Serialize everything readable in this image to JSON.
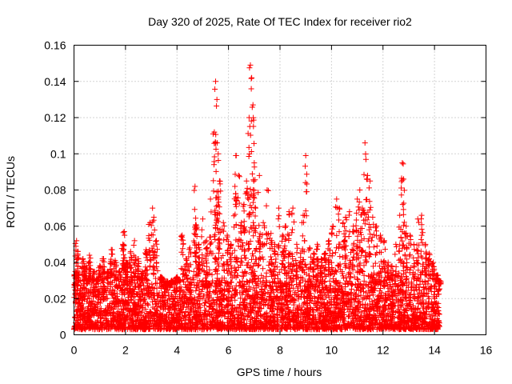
{
  "chart_data": {
    "type": "scatter",
    "title": "Day 320 of 2025, Rate Of TEC Index for receiver rio2",
    "xlabel": "GPS time / hours",
    "ylabel": "ROTI / TECUs",
    "xlim": [
      0,
      16
    ],
    "ylim": [
      0,
      0.16
    ],
    "xticks": [
      0,
      2,
      4,
      6,
      8,
      10,
      12,
      14,
      16
    ],
    "xtick_labels": [
      "0",
      "2",
      "4",
      "6",
      "8",
      "10",
      "12",
      "14",
      "16"
    ],
    "yticks": [
      0,
      0.02,
      0.04,
      0.06,
      0.08,
      0.1,
      0.12,
      0.14,
      0.16
    ],
    "ytick_labels": [
      "0",
      "0.02",
      "0.04",
      "0.06",
      "0.08",
      "0.1",
      "0.12",
      "0.14",
      "0.16"
    ],
    "grid": true,
    "marker": "+",
    "color": "#ff0000",
    "data_x_range": [
      0.0,
      14.2
    ],
    "baseline_band": [
      0.003,
      0.03
    ],
    "series": [
      {
        "name": "ROTI",
        "x": [
          0.05,
          0.1,
          0.15,
          0.2,
          0.35,
          0.45,
          0.6,
          0.75,
          0.9,
          1.0,
          1.15,
          1.3,
          1.45,
          1.6,
          1.75,
          1.9,
          1.95,
          2.05,
          2.2,
          2.35,
          2.5,
          2.65,
          2.8,
          2.95,
          3.05,
          3.1,
          3.2,
          3.4,
          3.6,
          3.8,
          4.0,
          4.2,
          4.35,
          4.5,
          4.7,
          4.75,
          4.85,
          5.0,
          5.15,
          5.3,
          5.45,
          5.5,
          5.55,
          5.6,
          5.65,
          5.8,
          5.95,
          6.1,
          6.25,
          6.3,
          6.4,
          6.5,
          6.6,
          6.7,
          6.8,
          6.85,
          6.9,
          6.95,
          7.0,
          7.05,
          7.2,
          7.35,
          7.5,
          7.65,
          7.8,
          7.95,
          8.1,
          8.2,
          8.35,
          8.5,
          8.65,
          8.8,
          8.9,
          9.0,
          9.15,
          9.3,
          9.45,
          9.6,
          9.75,
          9.9,
          10.05,
          10.2,
          10.3,
          10.45,
          10.55,
          10.7,
          10.85,
          11.0,
          11.1,
          11.2,
          11.3,
          11.4,
          11.5,
          11.6,
          11.75,
          11.9,
          12.05,
          12.2,
          12.35,
          12.5,
          12.65,
          12.75,
          12.8,
          12.9,
          13.05,
          13.2,
          13.35,
          13.5,
          13.65,
          13.8,
          13.95,
          14.1,
          14.2
        ],
        "y": [
          0.035,
          0.052,
          0.046,
          0.03,
          0.042,
          0.038,
          0.044,
          0.035,
          0.03,
          0.038,
          0.042,
          0.035,
          0.047,
          0.041,
          0.035,
          0.05,
          0.057,
          0.04,
          0.046,
          0.052,
          0.042,
          0.035,
          0.047,
          0.062,
          0.07,
          0.065,
          0.052,
          0.032,
          0.025,
          0.028,
          0.032,
          0.055,
          0.042,
          0.048,
          0.082,
          0.06,
          0.05,
          0.064,
          0.052,
          0.075,
          0.112,
          0.14,
          0.13,
          0.1,
          0.085,
          0.062,
          0.055,
          0.05,
          0.082,
          0.099,
          0.088,
          0.062,
          0.072,
          0.085,
          0.12,
          0.149,
          0.142,
          0.127,
          0.095,
          0.07,
          0.088,
          0.062,
          0.08,
          0.056,
          0.05,
          0.07,
          0.055,
          0.06,
          0.068,
          0.07,
          0.05,
          0.045,
          0.066,
          0.099,
          0.048,
          0.045,
          0.05,
          0.042,
          0.045,
          0.052,
          0.06,
          0.075,
          0.07,
          0.062,
          0.065,
          0.068,
          0.06,
          0.075,
          0.08,
          0.07,
          0.106,
          0.088,
          0.085,
          0.065,
          0.06,
          0.055,
          0.052,
          0.04,
          0.038,
          0.05,
          0.066,
          0.095,
          0.086,
          0.06,
          0.055,
          0.05,
          0.064,
          0.066,
          0.05,
          0.045,
          0.04,
          0.033,
          0.028
        ]
      }
    ]
  }
}
